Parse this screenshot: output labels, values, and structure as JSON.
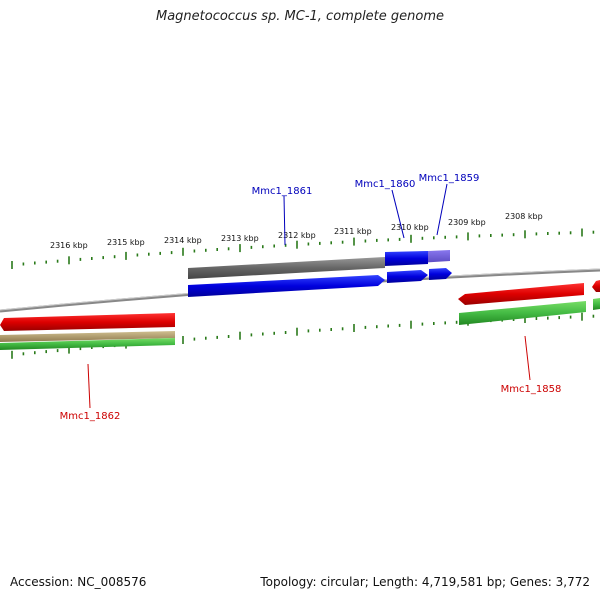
{
  "title": "Magnetococcus sp. MC-1, complete genome",
  "colors": {
    "forward_cds": "#0000dd",
    "reverse_cds": "#dd0000",
    "forward_cds_light": "#6655cc",
    "forward_rna": "#666666",
    "reverse_rna": "#44bb44",
    "misc_feature": "#b0a070",
    "backbone": "#888888",
    "tick": "#2a7a1a"
  },
  "scale": {
    "unit": "kbp",
    "tick_labels": [
      "2316 kbp",
      "2315 kbp",
      "2314 kbp",
      "2313 kbp",
      "2312 kbp",
      "2311 kbp",
      "2310 kbp",
      "2309 kbp",
      "2308 kbp"
    ]
  },
  "genes": [
    {
      "name": "Mmc1_1861",
      "strand": "forward",
      "color": "#0000bb"
    },
    {
      "name": "Mmc1_1860",
      "strand": "forward",
      "color": "#0000bb"
    },
    {
      "name": "Mmc1_1859",
      "strand": "forward",
      "color": "#0000bb"
    },
    {
      "name": "Mmc1_1862",
      "strand": "reverse",
      "color": "#cc0000"
    },
    {
      "name": "Mmc1_1858",
      "strand": "reverse",
      "color": "#cc0000"
    }
  ],
  "footer": {
    "accession": "Accession: NC_008576",
    "summary": "Topology: circular; Length: 4,719,581 bp; Genes: 3,772"
  }
}
